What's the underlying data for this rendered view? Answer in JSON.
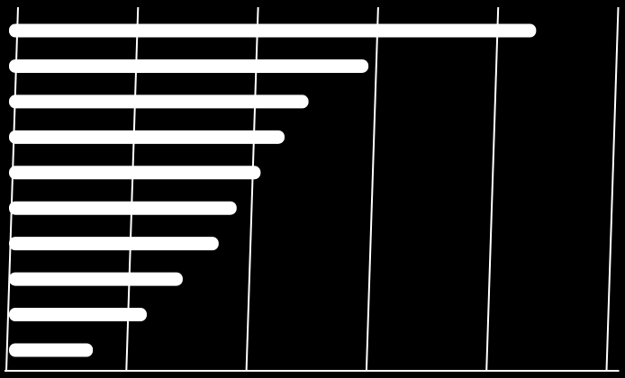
{
  "chart_data": {
    "type": "barh",
    "categories": [
      null,
      null,
      null,
      null,
      null,
      null,
      null,
      null,
      null,
      null
    ],
    "values": [
      4.4,
      3.0,
      2.5,
      2.3,
      2.1,
      1.9,
      1.75,
      1.45,
      1.15,
      0.7
    ],
    "color": "#ffffff",
    "xlim": [
      0,
      5
    ],
    "xticks": [
      0,
      1,
      2,
      3,
      4,
      5
    ],
    "grid": true
  }
}
